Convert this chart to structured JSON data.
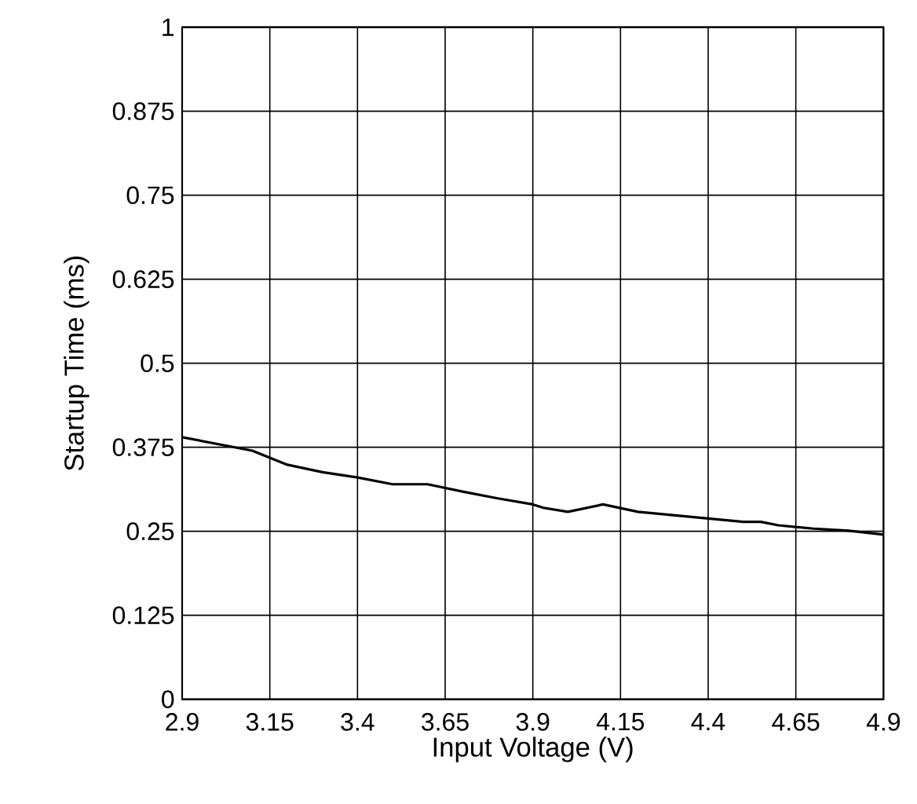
{
  "chart_data": {
    "type": "line",
    "xlabel": "Input Voltage (V)",
    "ylabel": "Startup Time (ms)",
    "x": [
      2.9,
      3.1,
      3.2,
      3.3,
      3.4,
      3.5,
      3.6,
      3.7,
      3.8,
      3.9,
      3.93,
      4.0,
      4.1,
      4.2,
      4.3,
      4.4,
      4.5,
      4.55,
      4.6,
      4.7,
      4.8,
      4.9
    ],
    "series": [
      {
        "color": "#000000",
        "values": [
          0.39,
          0.37,
          0.349,
          0.338,
          0.33,
          0.32,
          0.32,
          0.309,
          0.299,
          0.29,
          0.285,
          0.279,
          0.29,
          0.279,
          0.274,
          0.269,
          0.264,
          0.264,
          0.259,
          0.254,
          0.251,
          0.245
        ]
      }
    ],
    "xlim": [
      2.9,
      4.9
    ],
    "xticks": [
      2.9,
      3.15,
      3.4,
      3.65,
      3.9,
      4.15,
      4.4,
      4.65,
      4.9
    ],
    "ylim": [
      0,
      1
    ],
    "yticks": [
      0,
      0.125,
      0.25,
      0.375,
      0.5,
      0.625,
      0.75,
      0.875,
      1
    ],
    "grid": true,
    "marker": "none",
    "line_style": "solid"
  }
}
